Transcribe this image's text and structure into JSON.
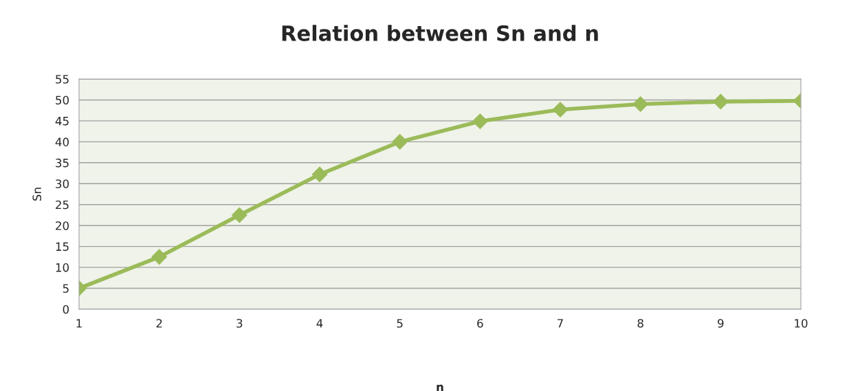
{
  "chart_data": {
    "type": "line",
    "title": "Relation between Sn and n",
    "xlabel": "n",
    "ylabel": "Sn",
    "categories": [
      "1",
      "2",
      "3",
      "4",
      "5",
      "6",
      "7",
      "8",
      "9",
      "10"
    ],
    "series": [
      {
        "color": "#9bbb59",
        "values": [
          5,
          12.5,
          22.5,
          32.2,
          40,
          44.9,
          47.7,
          49,
          49.6,
          49.8
        ]
      }
    ],
    "ylim": [
      0,
      55
    ],
    "yticks": [
      0,
      5,
      10,
      15,
      20,
      25,
      30,
      35,
      40,
      45,
      50,
      55
    ],
    "grid": "y",
    "marker": "diamond",
    "line_style": "solid",
    "legend": false
  }
}
